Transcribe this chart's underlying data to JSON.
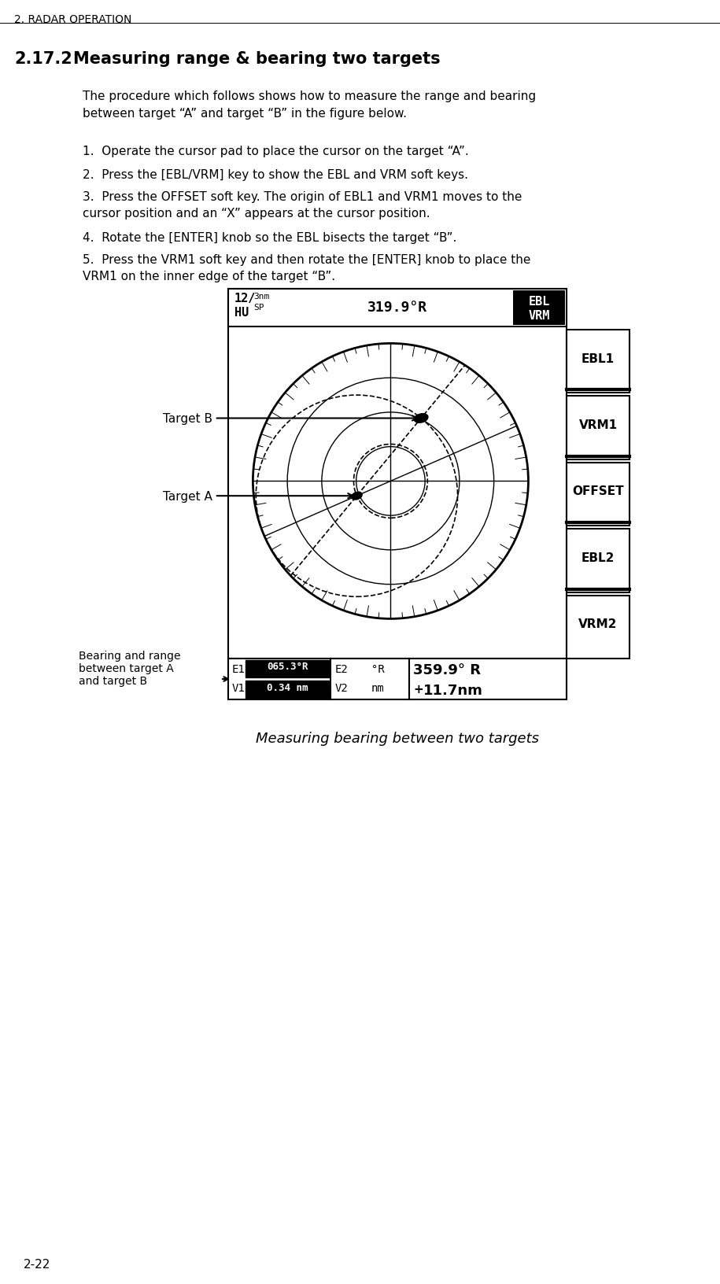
{
  "page_header": "2. RADAR OPERATION",
  "section_number": "2.17.2",
  "section_title": "Measuring range & bearing two targets",
  "body_text": "The procedure which follows shows how to measure the range and bearing\nbetween target “A” and target “B” in the figure below.",
  "steps": [
    "Operate the cursor pad to place the cursor on the target “A”.",
    "Press the [EBL/VRM] key to show the EBL and VRM soft keys.",
    "Press the OFFSET soft key. The origin of EBL1 and VRM1 moves to the\ncursor position and an “X” appears at the cursor position.",
    "Rotate the [ENTER] knob so the EBL bisects the target “B”.",
    "Press the VRM1 soft key and then rotate the [ENTER] knob to place the\nVRM1 on the inner edge of the target “B”."
  ],
  "figure_caption": "Measuring bearing between two targets",
  "page_footer": "2-22",
  "bg_color": "#ffffff",
  "radar_bg": "#ffffff",
  "radar_border": "#000000",
  "softkey_labels": [
    "EBL1",
    "VRM1",
    "OFFSET",
    "EBL2",
    "VRM2"
  ],
  "header_softkey": "EBL\nVRM",
  "status_bar": {
    "left_text": "12/³ⁿᴹ\nHU",
    "left_num": "12/",
    "left_sup": "3nm\nSP",
    "left_mode": "HU",
    "center_text": "319.9°R",
    "right_text": "EBL\nVRM"
  },
  "data_bar": {
    "e1_label": "E1",
    "e1_value": "065.3°R",
    "v1_label": "V1",
    "v1_value": "0.34 nm",
    "e2_label": "E2",
    "e2_value": "°R",
    "v2_label": "V2",
    "v2_value": "nm",
    "right_bearing": "359.9° R",
    "right_range": "+\n11.7nm"
  },
  "target_a_label": "Target A",
  "target_b_label": "Target B",
  "annotation_label": "Bearing and range\nbetween target A\nand target B"
}
